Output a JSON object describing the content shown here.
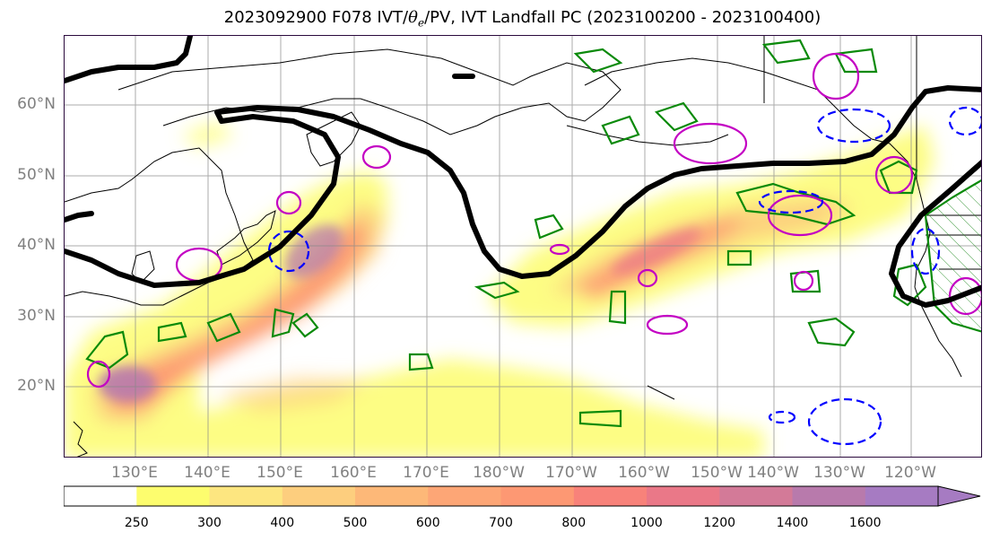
{
  "title": {
    "prefix": "2023092900 F078 IVT/",
    "theta": "θ",
    "theta_sub": "e",
    "suffix": "/PV, IVT Landfall PC (2023100200 - 2023100400)"
  },
  "lat_labels": [
    "60°N",
    "50°N",
    "40°N",
    "30°N",
    "20°N"
  ],
  "lon_labels": [
    "130°E",
    "140°E",
    "150°E",
    "160°E",
    "170°E",
    "180°W",
    "170°W",
    "160°W",
    "150°W",
    "140°W",
    "130°W",
    "120°W"
  ],
  "colorbar": {
    "levels": [
      "250",
      "300",
      "400",
      "500",
      "600",
      "700",
      "800",
      "1000",
      "1200",
      "1400",
      "1600"
    ],
    "colors": [
      "#ffffff",
      "#fdfd6e",
      "#fde680",
      "#fdce7e",
      "#fdb878",
      "#fda676",
      "#fd9873",
      "#f8827a",
      "#ea7888",
      "#d37a98",
      "#b87aac",
      "#a67bc2"
    ]
  },
  "legend_semantics": {
    "black_contour": "landfall-pc",
    "green_contour": "theta-e",
    "magenta_contour": "pv-positive",
    "blue_dashed_contour": "pv-negative"
  }
}
